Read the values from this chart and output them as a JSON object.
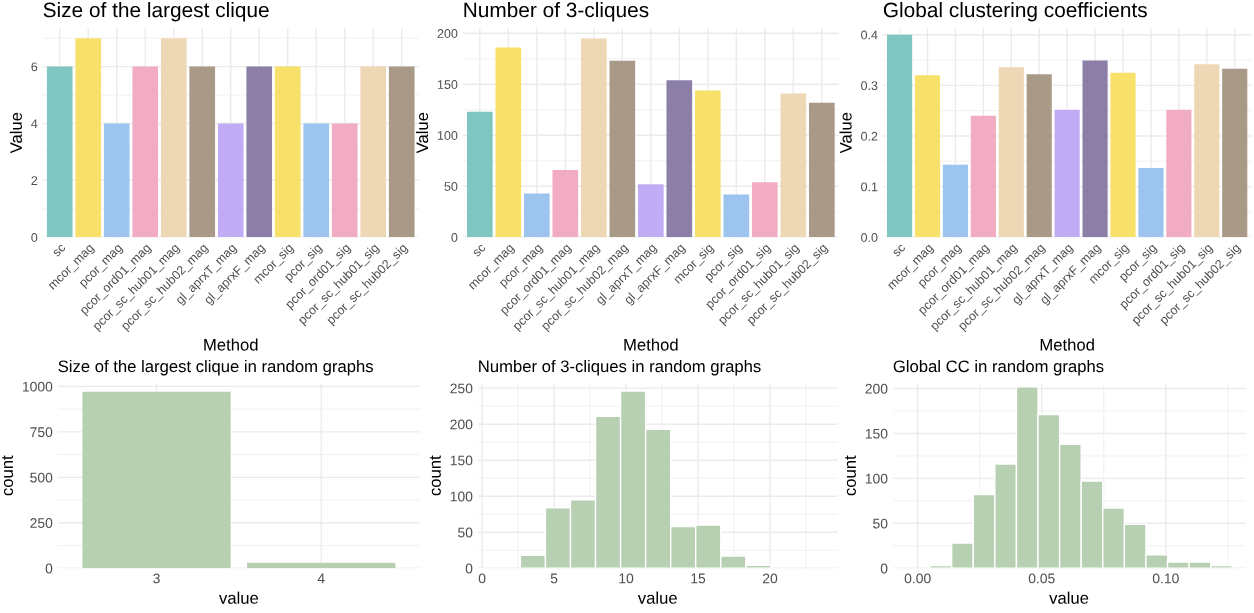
{
  "chart_data": [
    {
      "type": "bar",
      "title": "Size of the largest clique",
      "xlabel": "Method",
      "ylabel": "Value",
      "categories": [
        "sc",
        "mcor_mag",
        "pcor_mag",
        "pcor_ord01_mag",
        "pcor_sc_hub01_mag",
        "pcor_sc_hub02_mag",
        "gl_aprxT_mag",
        "gl_aprxF_mag",
        "mcor_sig",
        "pcor_sig",
        "pcor_ord01_sig",
        "pcor_sc_hub01_sig",
        "pcor_sc_hub02_sig"
      ],
      "values": [
        6,
        7,
        4,
        6,
        7,
        6,
        4,
        6,
        6,
        4,
        4,
        6,
        6
      ],
      "colors": [
        "#80c6c0",
        "#f7e16b",
        "#9cc4ee",
        "#f1acc3",
        "#eed7b4",
        "#a89a86",
        "#c0acf5",
        "#8b7fa8",
        "#f7e16b",
        "#9cc4ee",
        "#f1acc3",
        "#eed7b4",
        "#a89a86"
      ],
      "ylim": [
        0,
        7.35
      ],
      "yticks": [
        0,
        2,
        4,
        6
      ],
      "grid": true
    },
    {
      "type": "bar",
      "title": "Number of 3-cliques",
      "xlabel": "Method",
      "ylabel": "Value",
      "categories": [
        "sc",
        "mcor_mag",
        "pcor_mag",
        "pcor_ord01_mag",
        "pcor_sc_hub01_mag",
        "pcor_sc_hub02_mag",
        "gl_aprxT_mag",
        "gl_aprxF_mag",
        "mcor_sig",
        "pcor_sig",
        "pcor_ord01_sig",
        "pcor_sc_hub01_sig",
        "pcor_sc_hub02_sig"
      ],
      "values": [
        123,
        186,
        43,
        66,
        195,
        173,
        52,
        154,
        144,
        42,
        54,
        141,
        132
      ],
      "colors": [
        "#80c6c0",
        "#f7e16b",
        "#9cc4ee",
        "#f1acc3",
        "#eed7b4",
        "#a89a86",
        "#c0acf5",
        "#8b7fa8",
        "#f7e16b",
        "#9cc4ee",
        "#f1acc3",
        "#eed7b4",
        "#a89a86"
      ],
      "ylim": [
        0,
        205
      ],
      "yticks": [
        0,
        50,
        100,
        150,
        200
      ],
      "grid": true
    },
    {
      "type": "bar",
      "title": "Global clustering coefficients",
      "xlabel": "Method",
      "ylabel": "Value",
      "categories": [
        "sc",
        "mcor_mag",
        "pcor_mag",
        "pcor_ord01_mag",
        "pcor_sc_hub01_mag",
        "pcor_sc_hub02_mag",
        "gl_aprxT_mag",
        "gl_aprxF_mag",
        "mcor_sig",
        "pcor_sig",
        "pcor_ord01_sig",
        "pcor_sc_hub01_sig",
        "pcor_sc_hub02_sig"
      ],
      "values": [
        0.4,
        0.32,
        0.143,
        0.24,
        0.336,
        0.322,
        0.252,
        0.349,
        0.325,
        0.137,
        0.252,
        0.342,
        0.333
      ],
      "colors": [
        "#80c6c0",
        "#f7e16b",
        "#9cc4ee",
        "#f1acc3",
        "#eed7b4",
        "#a89a86",
        "#c0acf5",
        "#8b7fa8",
        "#f7e16b",
        "#9cc4ee",
        "#f1acc3",
        "#eed7b4",
        "#a89a86"
      ],
      "ylim": [
        0,
        0.413
      ],
      "yticks": [
        {
          "value": 0,
          "label": "0.0"
        },
        0.1,
        0.2,
        0.3,
        0.4
      ],
      "grid": true
    },
    {
      "type": "bar",
      "title": "Size of the largest clique in random graphs",
      "xlabel": "value",
      "ylabel": "count",
      "categories": [
        "3",
        "4"
      ],
      "values": [
        970,
        30
      ],
      "color": "#b7d0b2",
      "ylim": [
        0,
        1018
      ],
      "yticks": [
        0,
        250,
        500,
        750,
        1000
      ],
      "grid": true
    },
    {
      "type": "histogram",
      "title": "Number of 3-cliques in random graphs",
      "xlabel": "value",
      "ylabel": "count",
      "bins": [
        0.92,
        2.66,
        4.4,
        6.14,
        7.88,
        9.62,
        11.36,
        13.1,
        14.84,
        16.58,
        18.32,
        20.06,
        21.8,
        23.54
      ],
      "values": [
        0,
        18,
        84,
        95,
        211,
        246,
        193,
        58,
        60,
        17,
        4,
        0,
        0
      ],
      "color": "#b7d0b2",
      "xlim": [
        -0.3,
        24.7
      ],
      "xticks": [
        0,
        5,
        10,
        15,
        20
      ],
      "ylim": [
        0,
        257
      ],
      "yticks": [
        0,
        50,
        100,
        150,
        200,
        250
      ],
      "grid": true
    },
    {
      "type": "histogram",
      "title": "Global CC in random graphs",
      "xlabel": "value",
      "ylabel": "count",
      "bins": [
        -0.0037,
        0.005,
        0.0137,
        0.0224,
        0.0311,
        0.0398,
        0.0485,
        0.0572,
        0.0659,
        0.0746,
        0.0833,
        0.092,
        0.1007,
        0.1094,
        0.1181,
        0.1268
      ],
      "values": [
        0,
        3,
        28,
        82,
        116,
        202,
        171,
        138,
        97,
        67,
        49,
        15,
        7,
        7,
        3
      ],
      "color": "#b7d0b2",
      "xlim": [
        -0.01,
        0.132
      ],
      "xticks": [
        {
          "value": 0,
          "label": "0.00"
        },
        0.05,
        {
          "value": 0.1,
          "label": "0.10"
        }
      ],
      "ylim": [
        0,
        206
      ],
      "yticks": [
        0,
        50,
        100,
        150,
        200
      ],
      "grid": true
    }
  ]
}
